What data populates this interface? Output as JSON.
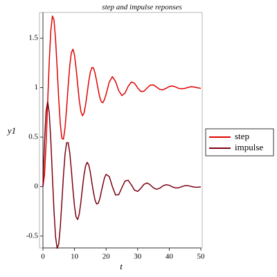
{
  "chart_data": {
    "type": "line",
    "title": "step and impulse reponses",
    "xlabel": "t",
    "ylabel": "y1",
    "x": [
      0,
      0.5,
      1,
      1.5,
      2,
      2.5,
      3,
      3.5,
      4,
      4.5,
      5,
      5.5,
      6,
      6.5,
      7,
      7.5,
      8,
      8.5,
      9,
      9.5,
      10,
      10.5,
      11,
      11.5,
      12,
      12.5,
      13,
      13.5,
      14,
      14.5,
      15,
      15.5,
      16,
      16.5,
      17,
      17.5,
      18,
      18.5,
      19,
      19.5,
      20,
      21,
      22,
      23,
      24,
      25,
      26,
      27,
      28,
      29,
      30,
      31,
      32,
      33,
      34,
      35,
      36,
      37,
      38,
      39,
      40,
      41,
      42,
      43,
      44,
      45,
      46,
      47,
      48,
      49,
      50
    ],
    "series": [
      {
        "name": "step",
        "color": "#e00000",
        "values": [
          0,
          0.12,
          0.435,
          0.853,
          1.266,
          1.577,
          1.723,
          1.685,
          1.489,
          1.197,
          0.886,
          0.632,
          0.488,
          0.479,
          0.593,
          0.792,
          1.021,
          1.223,
          1.354,
          1.389,
          1.329,
          1.197,
          1.032,
          0.875,
          0.762,
          0.716,
          0.741,
          0.825,
          0.942,
          1.061,
          1.155,
          1.204,
          1.199,
          1.148,
          1.068,
          0.98,
          0.903,
          0.856,
          0.849,
          0.881,
          0.933,
          1.057,
          1.111,
          1.062,
          0.97,
          0.92,
          0.946,
          1.013,
          1.057,
          1.045,
          0.997,
          0.961,
          0.964,
          0.997,
          1.026,
          1.028,
          1.006,
          0.982,
          0.978,
          0.993,
          1.011,
          1.017,
          1.007,
          0.993,
          0.988,
          0.993,
          1.003,
          1.009,
          1.006,
          0.999,
          0.993
        ]
      },
      {
        "name": "impulse",
        "color": "#7a0010",
        "values": [
          0,
          0.456,
          0.761,
          0.859,
          0.745,
          0.466,
          0.105,
          -0.247,
          -0.507,
          -0.624,
          -0.582,
          -0.407,
          -0.153,
          0.112,
          0.327,
          0.443,
          0.444,
          0.341,
          0.168,
          -0.029,
          -0.2,
          -0.308,
          -0.333,
          -0.278,
          -0.162,
          -0.019,
          0.115,
          0.208,
          0.245,
          0.22,
          0.145,
          0.04,
          -0.058,
          -0.137,
          -0.176,
          -0.17,
          -0.124,
          -0.05,
          0.022,
          0.089,
          0.123,
          0.102,
          -0.001,
          -0.085,
          -0.082,
          -0.011,
          0.056,
          0.064,
          0.017,
          -0.036,
          -0.049,
          -0.018,
          0.023,
          0.037,
          0.017,
          -0.013,
          -0.027,
          -0.016,
          0.007,
          0.019,
          0.013,
          -0.003,
          -0.014,
          -0.012,
          0,
          0.009,
          0.009,
          0.001,
          -0.006,
          -0.007,
          -0.002
        ]
      }
    ],
    "xlim": [
      0,
      50
    ],
    "xticks": [
      0,
      10,
      20,
      30,
      40,
      50
    ],
    "ylim": [
      -0.62,
      1.76
    ],
    "yticks": [
      {
        "value": -0.5,
        "label": "-0.5"
      },
      0,
      0.5,
      1,
      1.5
    ]
  }
}
